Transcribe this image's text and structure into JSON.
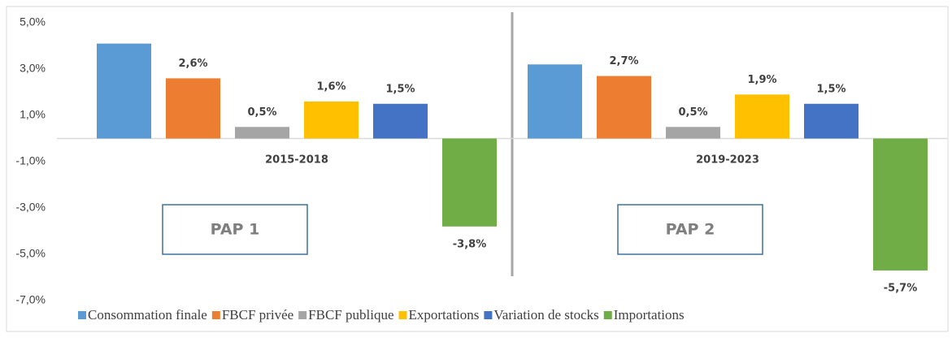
{
  "chart_data": {
    "type": "bar",
    "categories": [
      "2015-2018",
      "2019-2023"
    ],
    "series": [
      {
        "name": "Consommation finale",
        "color": "#5b9bd5",
        "values": [
          4.1,
          3.2
        ],
        "value_labels": [
          null,
          null
        ]
      },
      {
        "name": "FBCF privée",
        "color": "#ed7d31",
        "values": [
          2.6,
          2.7
        ],
        "value_labels": [
          "2,6%",
          "2,7%"
        ]
      },
      {
        "name": "FBCF publique",
        "color": "#a5a5a5",
        "values": [
          0.5,
          0.5
        ],
        "value_labels": [
          "0,5%",
          "0,5%"
        ]
      },
      {
        "name": "Exportations",
        "color": "#ffc000",
        "values": [
          1.6,
          1.9
        ],
        "value_labels": [
          "1,6%",
          "1,9%"
        ]
      },
      {
        "name": "Variation de stocks",
        "color": "#4472c4",
        "values": [
          1.5,
          1.5
        ],
        "value_labels": [
          "1,5%",
          "1,5%"
        ]
      },
      {
        "name": "Importations",
        "color": "#70ad47",
        "values": [
          -3.8,
          -5.7
        ],
        "value_labels": [
          "-3,8%",
          "-5,7%"
        ]
      }
    ],
    "ylim": [
      -7,
      5
    ],
    "yticks": [
      {
        "value": -7,
        "label": "-7,0%"
      },
      {
        "value": -5,
        "label": "-5,0%"
      },
      {
        "value": -3,
        "label": "-3,0%"
      },
      {
        "value": -1,
        "label": "-1,0%"
      },
      {
        "value": 1,
        "label": "1,0%"
      },
      {
        "value": 3,
        "label": "3,0%"
      },
      {
        "value": 5,
        "label": "5,0%"
      }
    ],
    "annotations": [
      "PAP 1",
      "PAP 2"
    ],
    "legend": "bottom"
  }
}
